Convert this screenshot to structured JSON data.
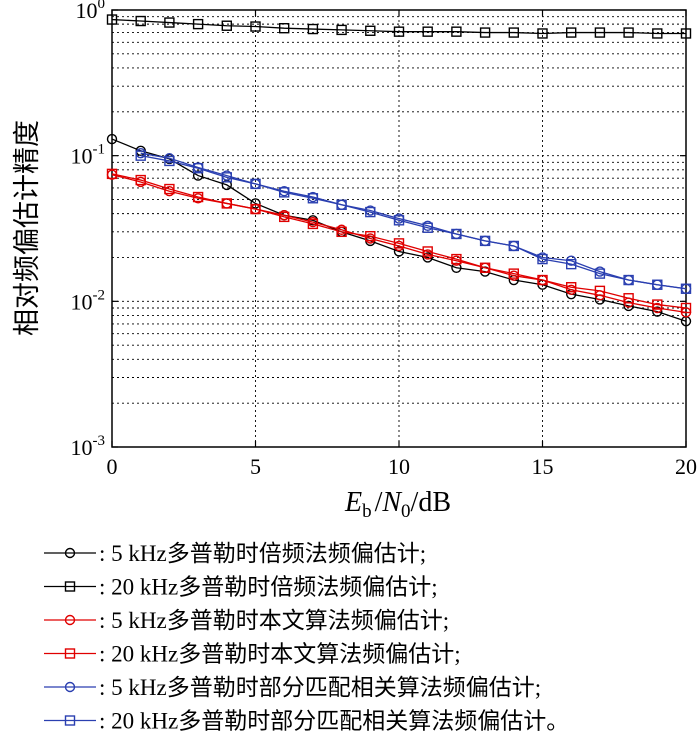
{
  "chart_data": {
    "type": "line",
    "xlabel": {
      "main": "E",
      "sub1": "b",
      "sep": "/",
      "main2": "N",
      "sub2": "0",
      "unit": "/dB"
    },
    "ylabel": "相对频偏估计精度",
    "x_ticks": [
      "0",
      "5",
      "10",
      "15",
      "20"
    ],
    "y_ticks": [
      {
        "base": "10",
        "exp": "0",
        "value": 1
      },
      {
        "base": "10",
        "exp": "-1",
        "value": 0.1
      },
      {
        "base": "10",
        "exp": "-2",
        "value": 0.01
      },
      {
        "base": "10",
        "exp": "-3",
        "value": 0.001
      }
    ],
    "xlim": [
      0,
      20
    ],
    "ylim": [
      0.001,
      1
    ],
    "y_scale": "log",
    "grid": true,
    "legend_position": "below",
    "x": [
      0,
      1,
      2,
      3,
      4,
      5,
      6,
      7,
      8,
      9,
      10,
      11,
      12,
      13,
      14,
      15,
      16,
      17,
      18,
      19,
      20
    ],
    "series": [
      {
        "name": ": 5 kHz多普勒时倍频法频偏估计;",
        "color": "#000000",
        "marker": "circle",
        "values": [
          0.13,
          0.108,
          0.095,
          0.073,
          0.063,
          0.047,
          0.039,
          0.036,
          0.03,
          0.026,
          0.022,
          0.02,
          0.017,
          0.016,
          0.014,
          0.013,
          0.0112,
          0.0103,
          0.0093,
          0.0085,
          0.0073
        ]
      },
      {
        "name": ": 20 kHz多普勒时倍频法频偏估计;",
        "color": "#000000",
        "marker": "square",
        "values": [
          0.86,
          0.84,
          0.82,
          0.8,
          0.78,
          0.77,
          0.75,
          0.74,
          0.73,
          0.72,
          0.71,
          0.71,
          0.71,
          0.7,
          0.7,
          0.69,
          0.7,
          0.7,
          0.7,
          0.69,
          0.69
        ]
      },
      {
        "name": ": 5 kHz多普勒时本文算法频偏估计;",
        "color": "#e00000",
        "marker": "circle",
        "values": [
          0.074,
          0.066,
          0.057,
          0.051,
          0.047,
          0.043,
          0.039,
          0.035,
          0.031,
          0.027,
          0.024,
          0.021,
          0.019,
          0.017,
          0.015,
          0.014,
          0.012,
          0.011,
          0.0098,
          0.009,
          0.0084
        ]
      },
      {
        "name": ": 20 kHz多普勒时本文算法频偏估计;",
        "color": "#e00000",
        "marker": "square",
        "values": [
          0.075,
          0.068,
          0.059,
          0.052,
          0.047,
          0.043,
          0.038,
          0.034,
          0.03,
          0.028,
          0.025,
          0.022,
          0.0195,
          0.017,
          0.0155,
          0.014,
          0.0125,
          0.0118,
          0.0105,
          0.0095,
          0.009
        ]
      },
      {
        "name": ": 5 kHz多普勒时部分匹配相关算法频偏估计;",
        "color": "#2a3fb0",
        "marker": "circle",
        "values": [
          null,
          0.104,
          0.096,
          0.083,
          0.073,
          0.064,
          0.057,
          0.052,
          0.046,
          0.042,
          0.037,
          0.033,
          0.029,
          0.026,
          0.024,
          0.02,
          0.019,
          0.016,
          0.014,
          0.013,
          0.0122
        ]
      },
      {
        "name": ": 20 kHz多普勒时部分匹配相关算法频偏估计。",
        "color": "#2a3fb0",
        "marker": "square",
        "values": [
          null,
          0.1,
          0.092,
          0.082,
          0.071,
          0.064,
          0.056,
          0.051,
          0.046,
          0.041,
          0.036,
          0.032,
          0.029,
          0.026,
          0.024,
          0.0195,
          0.018,
          0.0155,
          0.014,
          0.013,
          0.0122
        ]
      }
    ]
  }
}
